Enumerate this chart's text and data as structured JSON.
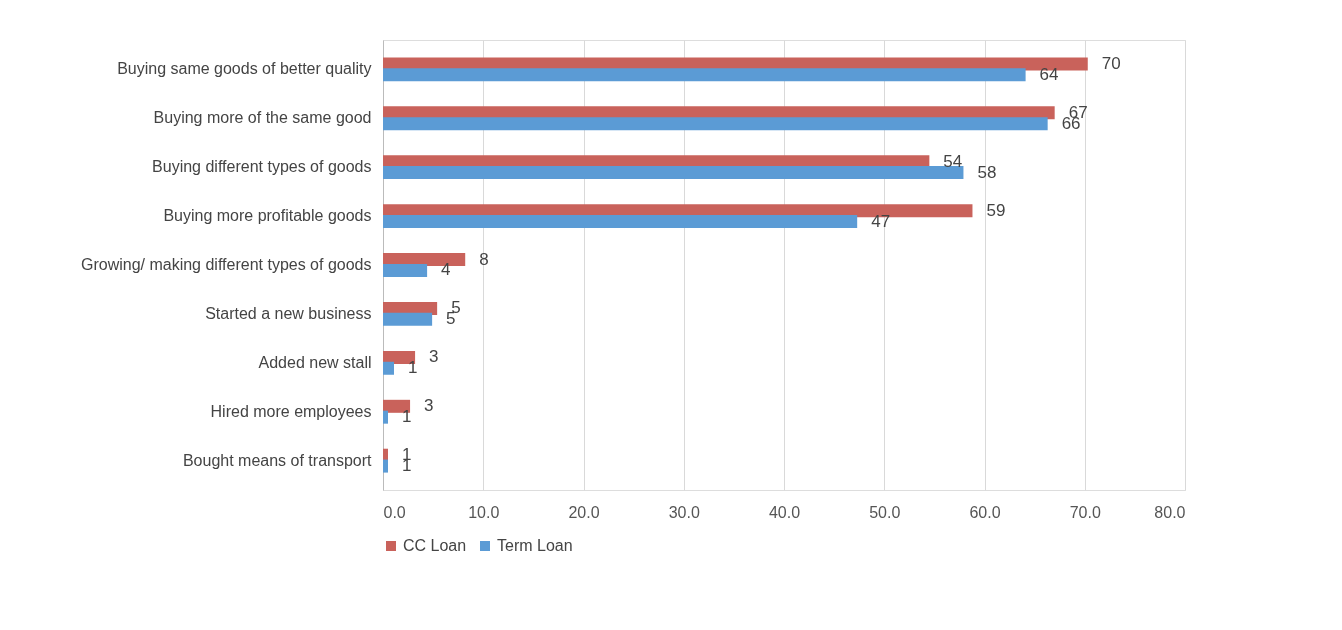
{
  "chart_data": {
    "type": "bar",
    "orientation": "horizontal",
    "categories": [
      "Buying same goods of better quality",
      "Buying more of the same good",
      "Buying different types of goods",
      "Buying more profitable goods",
      "Growing/ making different types of goods",
      "Started a new business",
      "Added new stall",
      "Hired more employees",
      "Bought means of transport"
    ],
    "series": [
      {
        "name": "CC Loan",
        "color": "#c9625b",
        "values": [
          70.3,
          67.0,
          54.5,
          58.8,
          8.2,
          5.4,
          3.2,
          2.7,
          0.5
        ],
        "value_labels": [
          "70",
          "67",
          "54",
          "59",
          "8",
          "5",
          "3",
          "3",
          "1"
        ]
      },
      {
        "name": "Term Loan",
        "color": "#5b9bd5",
        "values": [
          64.1,
          66.3,
          57.9,
          47.3,
          4.4,
          4.9,
          1.1,
          0.5,
          0.5
        ],
        "value_labels": [
          "64",
          "66",
          "58",
          "47",
          "4",
          "5",
          "1",
          "1",
          "1"
        ]
      }
    ],
    "xlim": [
      0,
      80
    ],
    "xticks": [
      {
        "value": 0,
        "label": "0.0"
      },
      {
        "value": 10,
        "label": "10.0"
      },
      {
        "value": 20,
        "label": "20.0"
      },
      {
        "value": 30,
        "label": "30.0"
      },
      {
        "value": 40,
        "label": "40.0"
      },
      {
        "value": 50,
        "label": "50.0"
      },
      {
        "value": 60,
        "label": "60.0"
      },
      {
        "value": 70,
        "label": "70.0"
      },
      {
        "value": 80,
        "label": "80.0"
      }
    ],
    "grid": "x",
    "legend": "bottom"
  }
}
